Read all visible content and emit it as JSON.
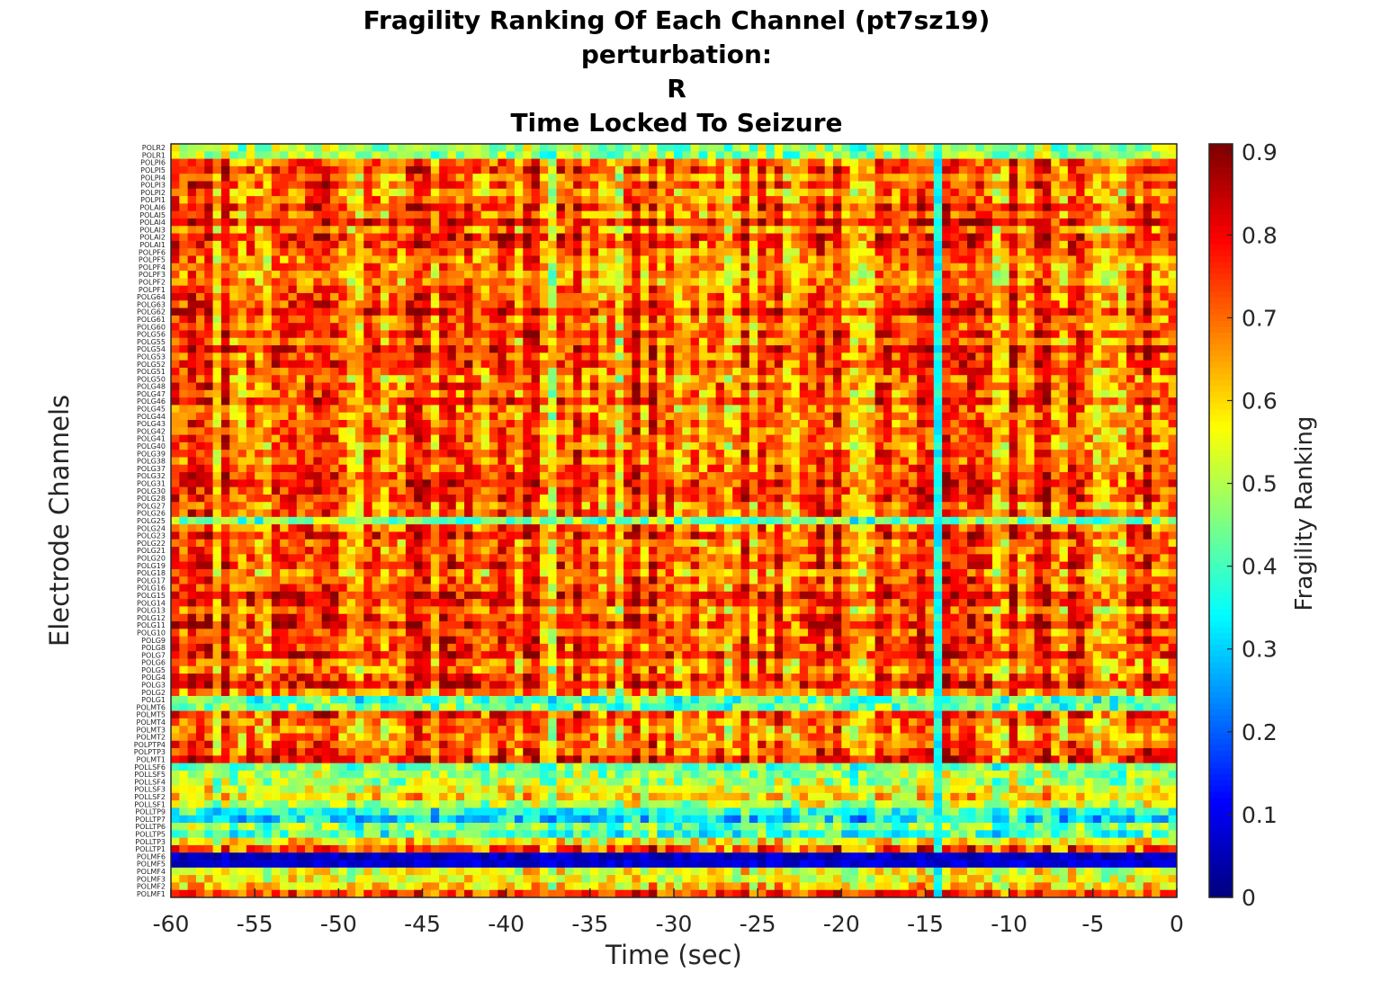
{
  "chart_data": {
    "type": "heatmap",
    "title_lines": [
      "Fragility Ranking Of Each Channel (pt7sz19)",
      "perturbation:",
      "R",
      "Time Locked To Seizure"
    ],
    "xlabel": "Time (sec)",
    "ylabel": "Electrode Channels",
    "colorbar_label": "Fragility Ranking",
    "xlim": [
      -60,
      0
    ],
    "x_ticks": [
      -60,
      -55,
      -50,
      -45,
      -40,
      -35,
      -30,
      -25,
      -20,
      -15,
      -10,
      -5,
      0
    ],
    "clim": [
      0,
      0.91
    ],
    "colorbar_ticks": [
      0,
      0.1,
      0.2,
      0.3,
      0.4,
      0.5,
      0.6,
      0.7,
      0.8,
      0.9
    ],
    "colormap": "jet",
    "time_step": 0.5,
    "channels": [
      "POLR2",
      "POLR1",
      "POLPI6",
      "POLPI5",
      "POLPI4",
      "POLPI3",
      "POLPI2",
      "POLPI1",
      "POLAI6",
      "POLAI5",
      "POLAI4",
      "POLAI3",
      "POLAI2",
      "POLAI1",
      "POLPF6",
      "POLPF5",
      "POLPF4",
      "POLPF3",
      "POLPF2",
      "POLPF1",
      "POLG64",
      "POLG63",
      "POLG62",
      "POLG61",
      "POLG60",
      "POLG56",
      "POLG55",
      "POLG54",
      "POLG53",
      "POLG52",
      "POLG51",
      "POLG50",
      "POLG48",
      "POLG47",
      "POLG46",
      "POLG45",
      "POLG44",
      "POLG43",
      "POLG42",
      "POLG41",
      "POLG40",
      "POLG39",
      "POLG38",
      "POLG37",
      "POLG32",
      "POLG31",
      "POLG30",
      "POLG28",
      "POLG27",
      "POLG26",
      "POLG25",
      "POLG24",
      "POLG23",
      "POLG22",
      "POLG21",
      "POLG20",
      "POLG19",
      "POLG18",
      "POLG17",
      "POLG16",
      "POLG15",
      "POLG14",
      "POLG13",
      "POLG12",
      "POLG11",
      "POLG10",
      "POLG9",
      "POLG8",
      "POLG7",
      "POLG6",
      "POLG5",
      "POLG4",
      "POLG3",
      "POLG2",
      "POLG1",
      "POLMT6",
      "POLMT5",
      "POLMT4",
      "POLMT3",
      "POLMT2",
      "POLPTP4",
      "POLPTP3",
      "POLMT1",
      "POLLSF6",
      "POLLSF5",
      "POLLSF4",
      "POLLSF3",
      "POLLSF2",
      "POLLSF1",
      "POLLTP9",
      "POLLTP7",
      "POLLTP6",
      "POLLTP5",
      "POLLTP3",
      "POLLTP1",
      "POLMF6",
      "POLMF5",
      "POLMF4",
      "POLMF3",
      "POLMF2",
      "POLMF1"
    ],
    "row_profile": {
      "cool_rows": {
        "POLR2": 0.5,
        "POLR1": 0.45,
        "POLG25": 0.45,
        "POLG1": 0.45,
        "POLMT6": 0.38,
        "POLLSF6": 0.4,
        "POLLSF5": 0.48,
        "POLLSF4": 0.5,
        "POLLSF3": 0.5,
        "POLLSF2": 0.55,
        "POLLSF1": 0.55,
        "POLLTP9": 0.32,
        "POLLTP7": 0.34,
        "POLLTP6": 0.4,
        "POLLTP5": 0.45,
        "POLLTP3": 0.55,
        "POLMF6": 0.06,
        "POLMF5": 0.08,
        "POLMF4": 0.55,
        "POLMF3": 0.55,
        "POLMF2": 0.6,
        "POLMF1": 0.7
      },
      "default_level": 0.72
    },
    "notable_columns": {
      "-45.5": 0.82,
      "-51": 0.8,
      "-26": 0.8,
      "-14.5": 0.35,
      "-37.5": 0.55,
      "-33.5": 0.58
    }
  }
}
